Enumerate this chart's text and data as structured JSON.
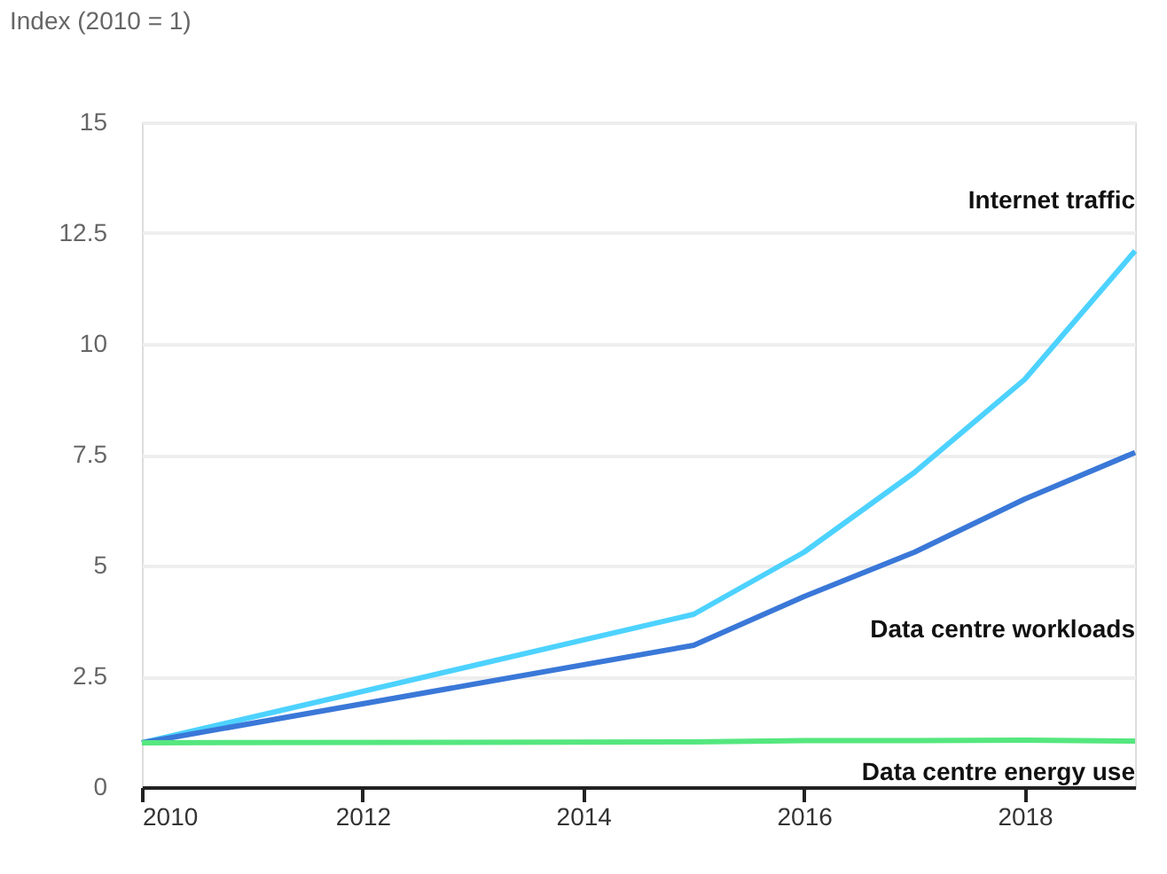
{
  "chart_data": {
    "type": "line",
    "ylabel": "Index (2010 = 1)",
    "x": [
      2010,
      2015,
      2016,
      2017,
      2018,
      2019
    ],
    "xlim": [
      2010,
      2019
    ],
    "xticks": [
      2010,
      2012,
      2014,
      2016,
      2018
    ],
    "ylim": [
      0,
      15
    ],
    "yticks": [
      0,
      2.5,
      5,
      7.5,
      10,
      12.5,
      15
    ],
    "grid": "y",
    "line_style": "solid",
    "series": [
      {
        "name": "Internet traffic",
        "color": "#4dd2ff",
        "values": [
          1,
          3.9,
          5.3,
          7.1,
          9.2,
          12.1
        ]
      },
      {
        "name": "Data centre workloads",
        "color": "#3a78d8",
        "values": [
          1,
          3.2,
          4.3,
          5.3,
          6.5,
          7.55
        ]
      },
      {
        "name": "Data centre energy use",
        "color": "#55e77f",
        "values": [
          1,
          1.02,
          1.05,
          1.05,
          1.06,
          1.04
        ]
      }
    ]
  }
}
